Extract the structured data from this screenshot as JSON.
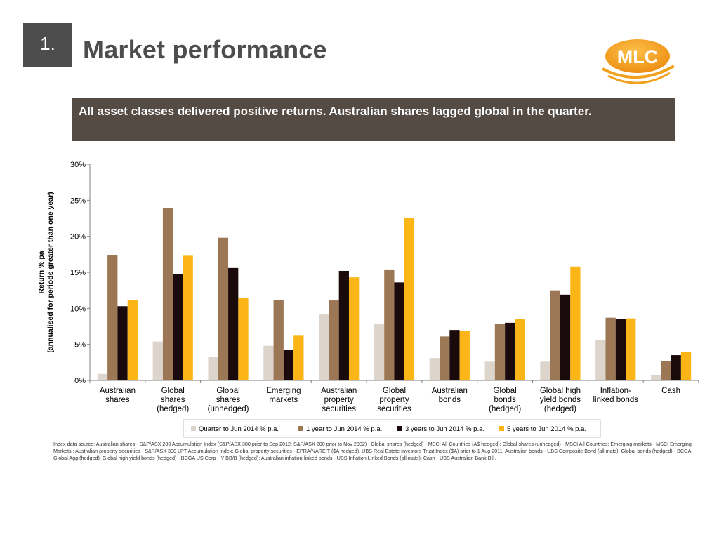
{
  "header": {
    "section_number": "1.",
    "title": "Market performance",
    "logo_text": "MLC"
  },
  "headline": "All asset classes delivered positive returns. Australian shares lagged global in the quarter.",
  "colors": {
    "badge": "#4d4d4d",
    "headline_bg": "#554b45",
    "logo_orange": "#f2a11f",
    "grid": "#d9d9d9"
  },
  "chart_data": {
    "type": "bar",
    "ylabel_lines": [
      "Return % pa",
      "(annualised for periods greater than one year)"
    ],
    "ylim": [
      0,
      30
    ],
    "yticks": [
      0,
      5,
      10,
      15,
      20,
      25,
      30
    ],
    "ytick_labels": [
      "0%",
      "5%",
      "10%",
      "15%",
      "20%",
      "25%",
      "30%"
    ],
    "categories": [
      [
        "Australian",
        "shares"
      ],
      [
        "Global",
        "shares",
        "(hedged)"
      ],
      [
        "Global",
        "shares",
        "(unhedged)"
      ],
      [
        "Emerging",
        "markets"
      ],
      [
        "Australian",
        "property",
        "securities"
      ],
      [
        "Global",
        "property",
        "securities"
      ],
      [
        "Australian",
        "bonds"
      ],
      [
        "Global",
        "bonds",
        "(hedged)"
      ],
      [
        "Global high",
        "yield bonds",
        "(hedged)"
      ],
      [
        "Inflation-",
        "linked bonds"
      ],
      [
        "Cash"
      ]
    ],
    "series": [
      {
        "name": "Quarter to Jun 2014 % p.a.",
        "color": "#ddd5cc",
        "values": [
          0.9,
          5.4,
          3.3,
          4.8,
          9.2,
          7.9,
          3.1,
          2.6,
          2.6,
          5.6,
          0.7
        ]
      },
      {
        "name": "1 year to Jun 2014 % p.a.",
        "color": "#9c7755",
        "values": [
          17.4,
          23.9,
          19.8,
          11.2,
          11.1,
          15.4,
          6.1,
          7.8,
          12.5,
          8.7,
          2.7
        ]
      },
      {
        "name": "3 years to Jun 2014 % p.a.",
        "color": "#1a0a0c",
        "values": [
          10.3,
          14.8,
          15.6,
          4.2,
          15.2,
          13.6,
          7.0,
          8.0,
          11.9,
          8.5,
          3.5
        ]
      },
      {
        "name": "5 years to Jun 2014 % p.a.",
        "color": "#fbb516",
        "values": [
          11.1,
          17.3,
          11.4,
          6.2,
          14.3,
          22.5,
          6.9,
          8.5,
          15.8,
          8.6,
          3.9
        ]
      }
    ],
    "grid": false,
    "legend_position": "bottom-center"
  },
  "source_note": "Index data source: Australian  shares - S&P/ASX 200 Accumulation Index (S&P/ASX 300 prior to Sep 2012; S&P/ASX 200 prior to Nov 2002) ; Global shares (hedged) - MSCI All Countries (A$ hedged); Global shares (unhedged) - MSCI All Countries; Emerging markets - MSCI Emerging Markets ; Australian property securities - S&P/ASX 300 LPT Accumulation Index; Global property securities - EPRA/NAREIT ($A hedged), UBS Real Estate Investors Trust Index ($A) prior to 1 Aug 2011;  Australian bonds - UBS Composite Bond (all mats); Global bonds (hedged) - BCGA Global Agg (hedged); Global high yield bonds (hedged) - BCGA US Corp HY BB/B (hedged); Australian inflation-linked bonds - UBS Inflation Linked Bonds (all mats); Cash - UBS Australian Bank Bill."
}
